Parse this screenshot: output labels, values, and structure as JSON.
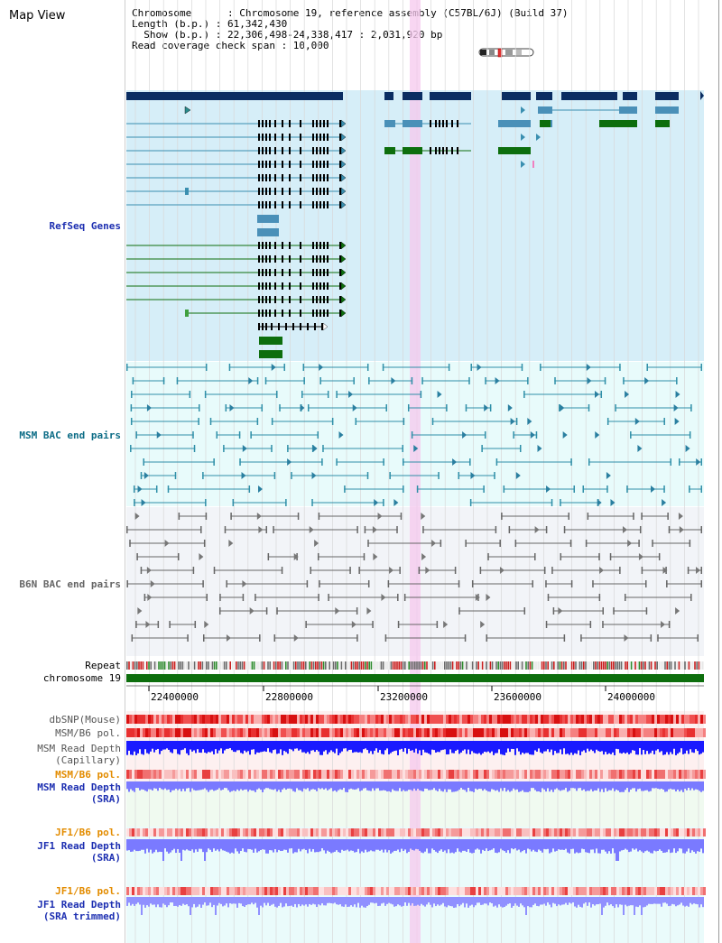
{
  "app": {
    "title": "Map View"
  },
  "info": {
    "line1": "Chromosome      : Chromosome 19, reference assembly (C57BL/6J) (Build 37)",
    "line2": "Length (b.p.) : 61,342,430",
    "line3": "  Show (b.p.) : 22,306,498-24,338,417 : 2,031,920 bp",
    "line4": "Read coverage check span : 10,000"
  },
  "tracks": {
    "refseq": "RefSeq Genes",
    "msm_bac": "MSM BAC end pairs",
    "b6n_bac": "B6N BAC end pairs",
    "repeat": "Repeat",
    "chromosome": "chromosome 19",
    "dbsnp": "dbSNP(Mouse)",
    "msm_b6_pol_1": "MSM/B6 pol.",
    "msm_read_depth_cap": "MSM Read Depth\n(Capillary)",
    "msm_b6_pol_2": "MSM/B6 pol.",
    "msm_read_depth_sra": "MSM Read Depth\n(SRA)",
    "jf1_b6_pol_1": "JF1/B6 pol.",
    "jf1_read_depth_sra": "JF1 Read Depth\n(SRA)",
    "jf1_b6_pol_2": "JF1/B6 pol.",
    "jf1_read_depth_trim": "JF1 Read Depth\n(SRA trimmed)"
  },
  "axis": {
    "ticks": [
      "22400000",
      "22800000",
      "23200000",
      "23600000",
      "24000000"
    ]
  },
  "colors": {
    "refseq_bg": "#d6eef8",
    "msm_bg": "#e8fbfb",
    "b6n_bg": "#f2f4f8",
    "highlight": "#f5c8ee",
    "navy": "#0b2d62",
    "steel": "#4a90b8",
    "green": "#0d6e0d",
    "teal": "#2f8fa8",
    "grey": "#666666",
    "chrom_green": "#0d6e0d",
    "snp_red": "#e83a3a",
    "depth_blue": "#1a1aff",
    "depth_light": "#7a7aff"
  }
}
